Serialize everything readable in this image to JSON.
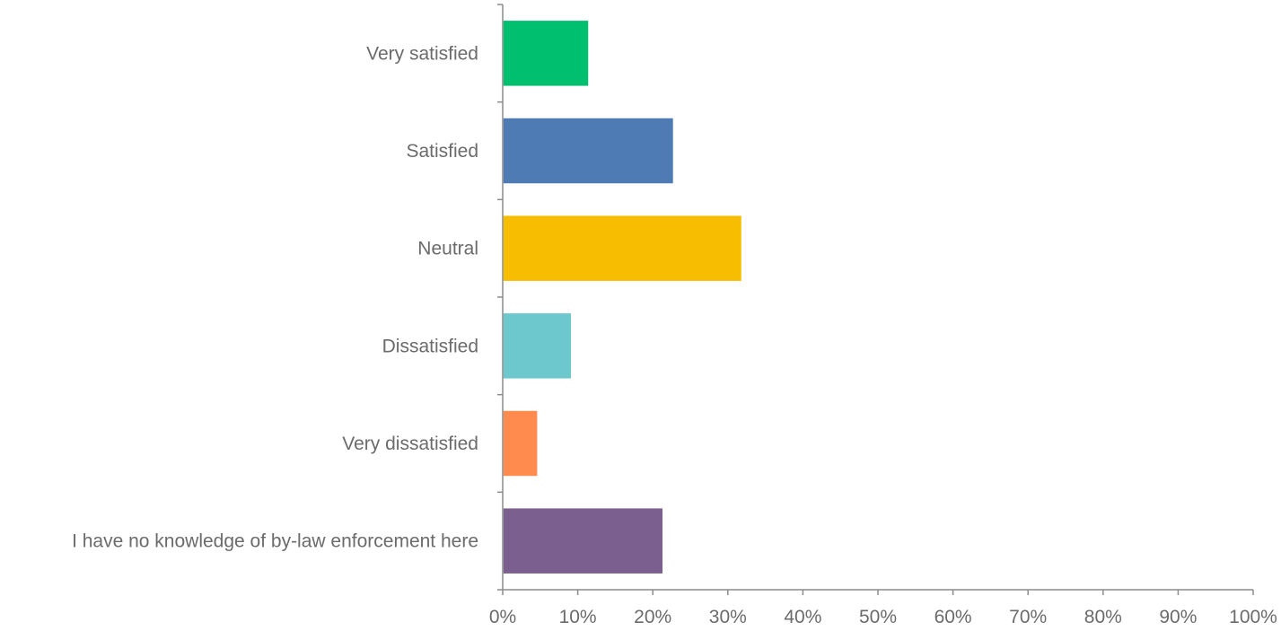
{
  "chart_data": {
    "type": "bar",
    "orientation": "horizontal",
    "categories": [
      "Very satisfied",
      "Satisfied",
      "Neutral",
      "Dissatisfied",
      "Very dissatisfied",
      "I have no knowledge of by-law enforcement here"
    ],
    "values": [
      11.3,
      22.6,
      31.7,
      9.0,
      4.5,
      21.2
    ],
    "colors": [
      "#00bf6f",
      "#4e7bb3",
      "#f7bd00",
      "#6cc8cd",
      "#ff8b4f",
      "#7b5f8e"
    ],
    "xlim": [
      0,
      100
    ],
    "xticks": [
      "0%",
      "10%",
      "20%",
      "30%",
      "40%",
      "50%",
      "60%",
      "70%",
      "80%",
      "90%",
      "100%"
    ],
    "title": "",
    "xlabel": "",
    "ylabel": "",
    "grid": false,
    "legend": "none"
  }
}
